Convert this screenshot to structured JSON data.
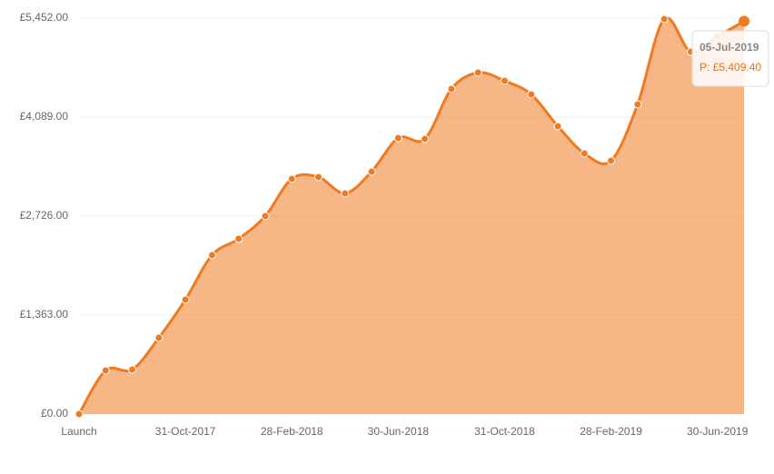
{
  "chart_data": {
    "type": "area",
    "categories": [
      "Launch",
      null,
      null,
      null,
      "31-Oct-2017",
      null,
      null,
      null,
      "28-Feb-2018",
      null,
      null,
      null,
      "30-Jun-2018",
      null,
      null,
      null,
      "31-Oct-2018",
      null,
      null,
      null,
      "28-Feb-2019",
      null,
      null,
      null,
      "30-Jun-2019",
      null
    ],
    "series": [
      {
        "name": "P",
        "color": "#f07a20",
        "values": [
          0,
          600,
          613,
          1050,
          1576,
          2188,
          2413,
          2726,
          3239,
          3264,
          3039,
          3339,
          3801,
          3789,
          4477,
          4702,
          4589,
          4402,
          3964,
          3589,
          3489,
          4264,
          5440,
          4990,
          5200,
          5409.4
        ]
      }
    ],
    "ylim": [
      0,
      5452
    ],
    "yticks": [
      {
        "value": 0,
        "label": "£0.00"
      },
      {
        "value": 1363,
        "label": "£1,363.00"
      },
      {
        "value": 2726,
        "label": "£2,726.00"
      },
      {
        "value": 4089,
        "label": "£4,089.00"
      },
      {
        "value": 5452,
        "label": "£5,452.00"
      }
    ],
    "grid": true,
    "tooltip": {
      "title": "05-Jul-2019",
      "label": "P: £5,409.40"
    }
  }
}
